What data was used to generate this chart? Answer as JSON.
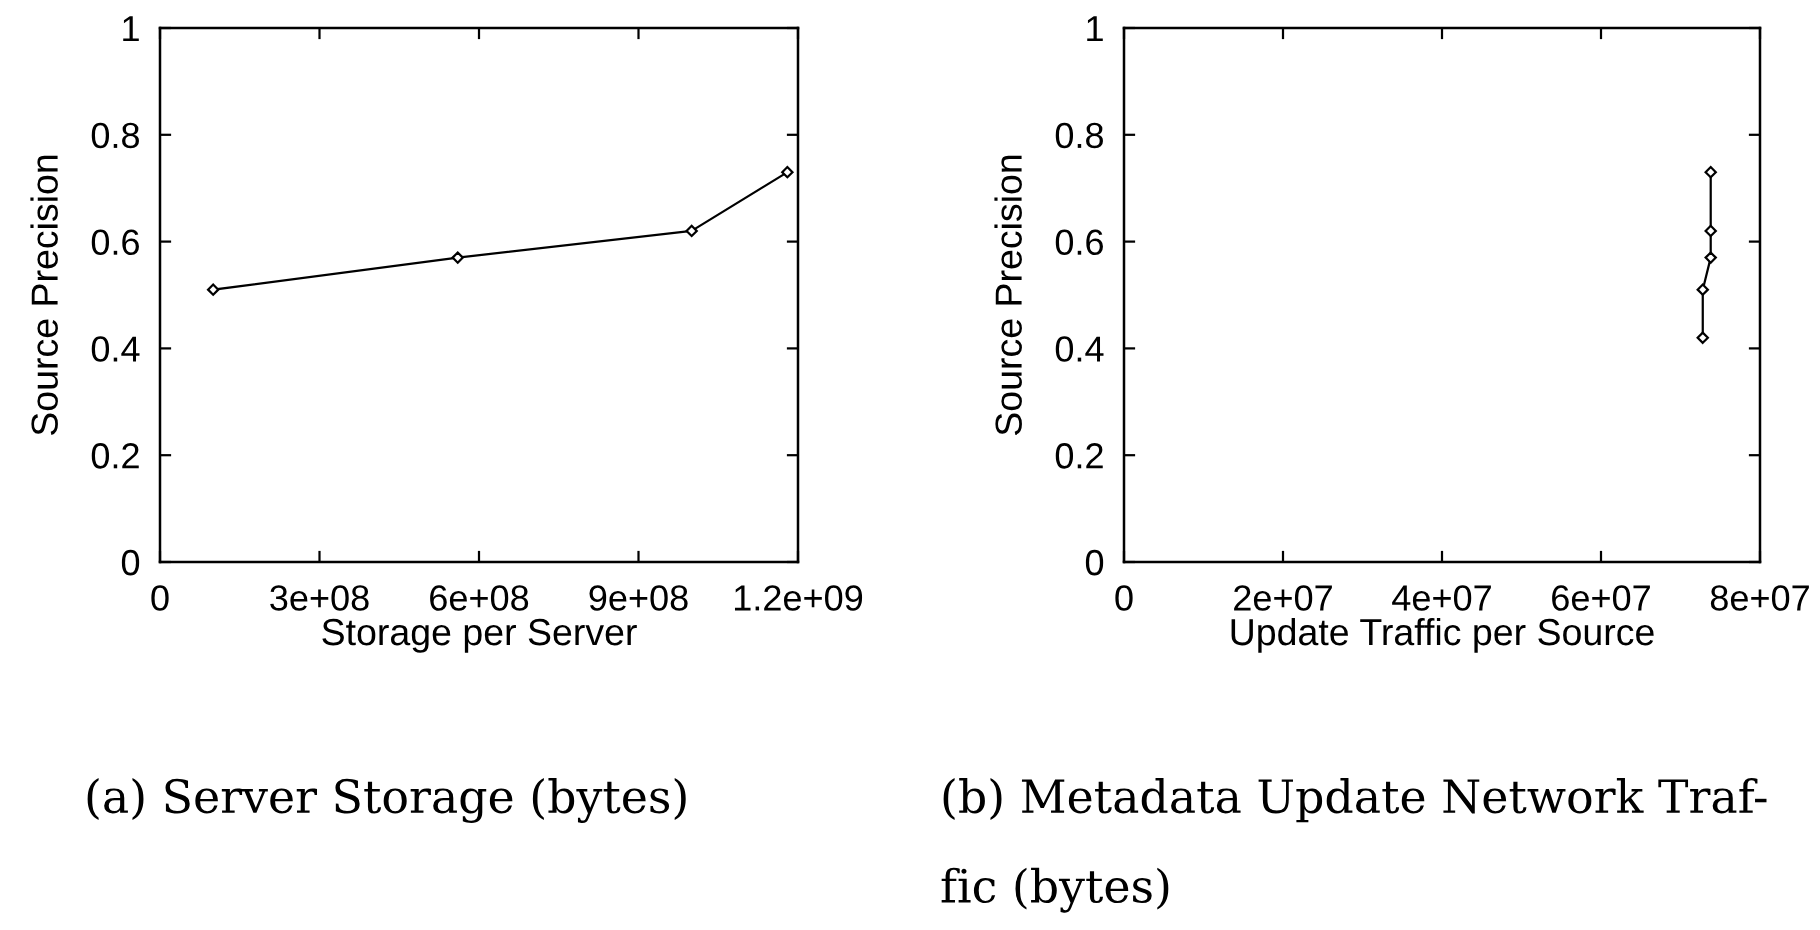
{
  "chart_data": [
    {
      "type": "line",
      "xlabel": "Storage per Server",
      "ylabel": "Source Precision",
      "x": [
        100000000,
        560000000,
        1000000000,
        1180000000
      ],
      "series": [
        {
          "color": "#000000",
          "values": [
            0.51,
            0.57,
            0.62,
            0.73
          ]
        }
      ],
      "xlim": [
        0,
        1200000000
      ],
      "ylim": [
        0,
        1
      ],
      "xticks": [
        0,
        {
          "value": 300000000,
          "label": "3e+08"
        },
        {
          "value": 600000000,
          "label": "6e+08"
        },
        {
          "value": 900000000,
          "label": "9e+08"
        },
        {
          "value": 1200000000,
          "label": "1.2e+09"
        }
      ],
      "yticks": [
        0,
        0.2,
        0.4,
        0.6,
        0.8,
        1
      ],
      "marker": "diamond",
      "line_style": "solid",
      "annotations": [
        "(a) Server Storage (bytes)"
      ]
    },
    {
      "type": "line",
      "xlabel": "Update Traffic per Source",
      "ylabel": "Source Precision",
      "x": [
        72800000,
        72800000,
        73800000,
        73800000,
        73800000
      ],
      "series": [
        {
          "color": "#000000",
          "values": [
            0.42,
            0.51,
            0.57,
            0.62,
            0.73
          ]
        }
      ],
      "xlim": [
        0,
        80000000
      ],
      "ylim": [
        0,
        1
      ],
      "xticks": [
        0,
        {
          "value": 20000000,
          "label": "2e+07"
        },
        {
          "value": 40000000,
          "label": "4e+07"
        },
        {
          "value": 60000000,
          "label": "6e+07"
        },
        {
          "value": 80000000,
          "label": "8e+07"
        }
      ],
      "yticks": [
        0,
        0.2,
        0.4,
        0.6,
        0.8,
        1
      ],
      "marker": "diamond",
      "line_style": "solid",
      "annotations": [
        "(b) Metadata Update Network Traf-\nfic (bytes)"
      ]
    }
  ]
}
